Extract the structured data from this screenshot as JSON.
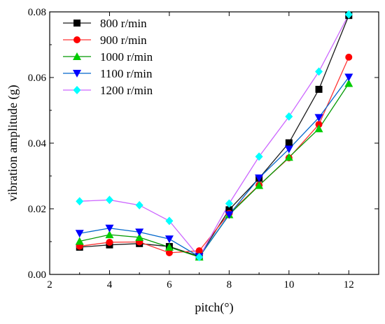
{
  "chart_data": {
    "type": "line",
    "title": "",
    "xlabel": "pitch(°)",
    "ylabel": "vibration amplitude (g)",
    "xlim": [
      2,
      13
    ],
    "ylim": [
      0,
      0.08
    ],
    "xticks": [
      2,
      4,
      6,
      8,
      10,
      12
    ],
    "xtick_labels": [
      "2",
      "4",
      "6",
      "8",
      "10",
      "12"
    ],
    "yticks": [
      0,
      0.02,
      0.04,
      0.06,
      0.08
    ],
    "ytick_labels": [
      "0.00",
      "0.02",
      "0.04",
      "0.06",
      "0.08"
    ],
    "grid": false,
    "legend_position": "top-left",
    "x": [
      3,
      4,
      5,
      6,
      7,
      8,
      9,
      10,
      11,
      12
    ],
    "series": [
      {
        "name": "800 r/min",
        "color": "#000000",
        "marker": "square",
        "values": [
          0.0083,
          0.009,
          0.0094,
          0.0085,
          0.0055,
          0.0197,
          0.0293,
          0.0401,
          0.0564,
          0.0789
        ]
      },
      {
        "name": "900 r/min",
        "color": "#ff0000",
        "marker": "circle",
        "values": [
          0.0086,
          0.0098,
          0.0099,
          0.0066,
          0.0072,
          0.0186,
          0.0272,
          0.0355,
          0.0457,
          0.0662
        ]
      },
      {
        "name": "1000 r/min",
        "color": "#00cc00",
        "marker": "triangle-up",
        "values": [
          0.0101,
          0.0121,
          0.0113,
          0.0083,
          0.0053,
          0.0182,
          0.0271,
          0.0357,
          0.0444,
          0.0582
        ]
      },
      {
        "name": "1100 r/min",
        "color": "#0000ff",
        "marker": "triangle-down",
        "values": [
          0.0125,
          0.0141,
          0.0129,
          0.0108,
          0.0054,
          0.0182,
          0.0294,
          0.0382,
          0.0478,
          0.0601
        ]
      },
      {
        "name": "1200 r/min",
        "color": "#ff00ff",
        "marker": "diamond",
        "values": [
          0.0223,
          0.0227,
          0.0211,
          0.0163,
          0.0053,
          0.0216,
          0.0359,
          0.0481,
          0.0618,
          0.0792
        ]
      }
    ],
    "line_colors": [
      "#1a1a1a",
      "#ff3333",
      "#009900",
      "#0066cc",
      "#cc66ff"
    ],
    "marker_colors": [
      "#000000",
      "#ff0000",
      "#00cc00",
      "#0000ff",
      "#00ffff"
    ]
  }
}
